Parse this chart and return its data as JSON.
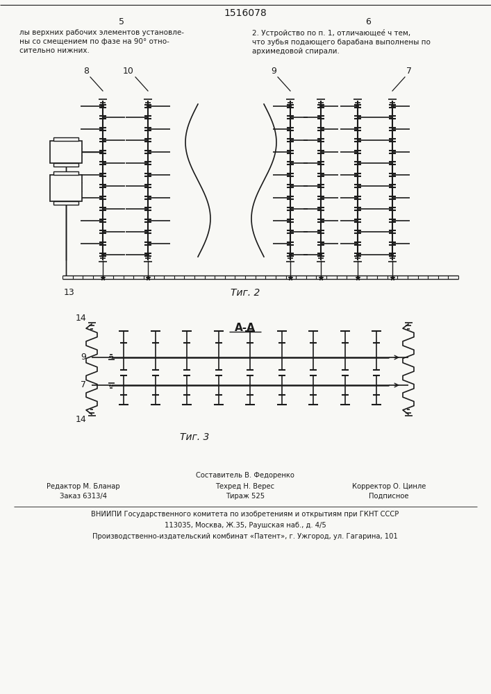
{
  "title": "1516078",
  "text_left": "лы верхних рабочих элементов установле-\nны со смещением по фазе на 90° отно-\nсительно нижних.",
  "text_right": "2. Устройство по п. 1, отличающее́ ч тем,\nчто зубья подающего барабана выполнены по\nархимедовой спирали.",
  "fig2_label": "Τиг. 2",
  "fig3_label": "Τиг. 3",
  "fig3_title": "А-А",
  "footer_lines": [
    "Составитель В. Федоренко",
    "Редактор М. Бланар",
    "Техред Н. Верес",
    "Корректор О. Цинле",
    "Заказ 6313/4",
    "Тираж 525",
    "Подписное",
    "ВНИИПИ Государственного комитета по изобретениям и открытиям при ГКНТ СССР",
    "113035, Москва, Ж—․35, Раушская наб., д. 4/5",
    "Производственно-издательский комбинат «Патент», г. Ужгород, ул. Гагарина, 101"
  ],
  "bg_color": "#f8f8f5",
  "line_color": "#1a1a1a"
}
